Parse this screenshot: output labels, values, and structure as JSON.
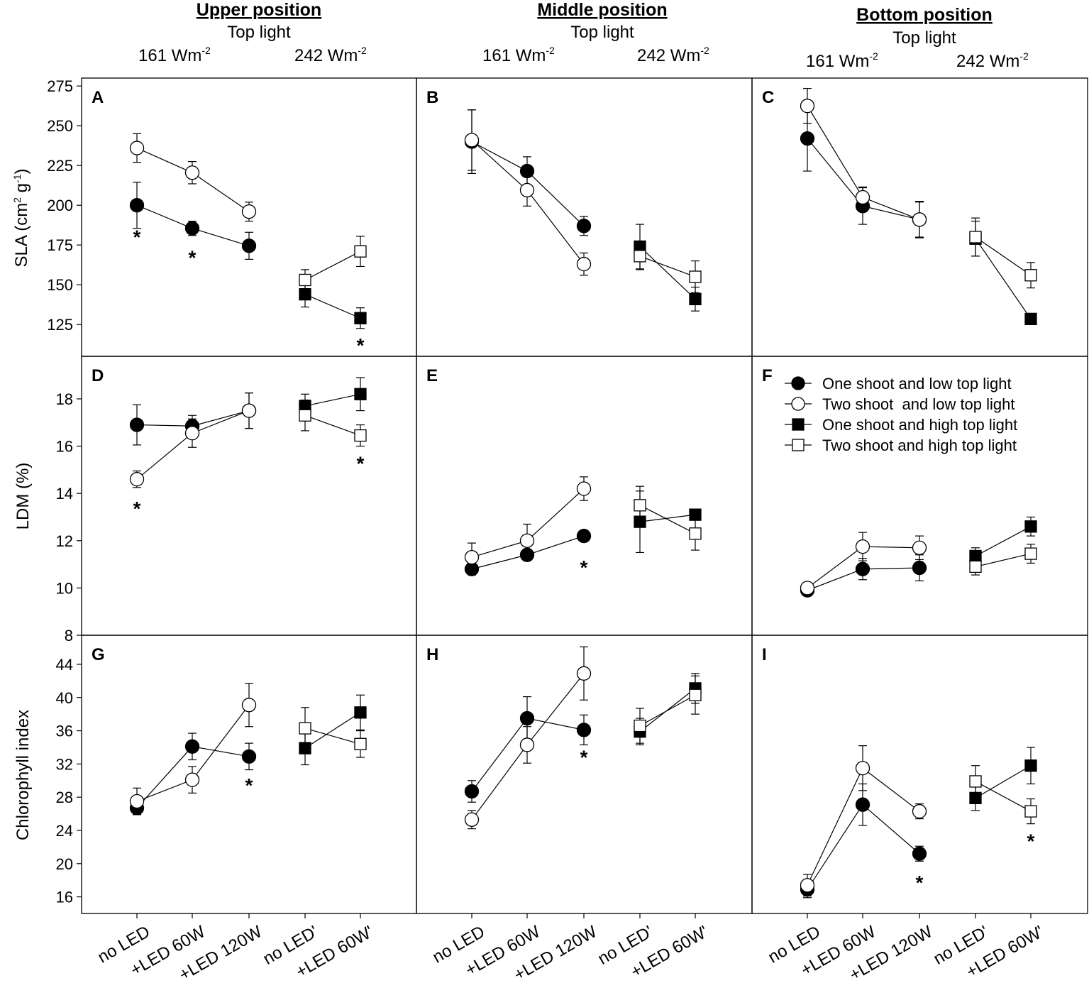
{
  "columns": [
    {
      "title": "Upper position",
      "top_light": "Top light",
      "irr_low": "161 Wm",
      "irr_high": "242 Wm",
      "irr_exp": "-2"
    },
    {
      "title": "Middle position",
      "top_light": "Top light",
      "irr_low": "161 Wm",
      "irr_high": "242 Wm",
      "irr_exp": "-2"
    },
    {
      "title": "Bottom position",
      "top_light": "Top light",
      "irr_low": "161 Wm",
      "irr_high": "242 Wm",
      "irr_exp": "-2"
    }
  ],
  "legend": {
    "one_low": "One shoot and low top light",
    "two_low": "Two shoot  and low top light",
    "one_high": "One shoot and high top light",
    "two_high": "Two shoot and high top light"
  },
  "chart_data": {
    "type": "line",
    "x_categories": [
      "no LED",
      "+LED 60W",
      "+LED 120W",
      "no LED'",
      "+LED 60W'"
    ],
    "series_legend": {
      "one_low": "One shoot and low top light",
      "two_low": "Two shoot  and low top light",
      "one_high": "One shoot and high top light",
      "two_high": "Two shoot and high top light"
    },
    "rows": [
      {
        "ylabel": "SLA (cm2 g-1)",
        "ylabel_parts": {
          "a": "SLA (cm",
          "b": "2",
          "c": " g",
          "d": "-1",
          "e": ")"
        },
        "ylim": [
          105,
          280
        ],
        "yticks": [
          125,
          150,
          175,
          200,
          225,
          250,
          275
        ],
        "panels": [
          {
            "label": "A",
            "series": {
              "one_low": {
                "values": [
                  200,
                  185.5,
                  174.5
                ],
                "errors": [
                  14.5,
                  4.5,
                  8.5
                ]
              },
              "two_low": {
                "values": [
                  236,
                  220.5,
                  196
                ],
                "errors": [
                  9,
                  7,
                  6
                ]
              },
              "one_high": {
                "values": [
                  144,
                  129
                ],
                "errors": [
                  8,
                  6.5
                ]
              },
              "two_high": {
                "values": [
                  153,
                  171
                ],
                "errors": [
                  6.5,
                  9.5
                ]
              }
            },
            "stars": [
              {
                "x": 0,
                "y": 182
              },
              {
                "x": 1,
                "y": 169
              },
              {
                "x": 4,
                "y": 114
              }
            ]
          },
          {
            "label": "B",
            "series": {
              "one_low": {
                "values": [
                  240,
                  221.5,
                  187
                ],
                "errors": [
                  20,
                  9,
                  6
                ]
              },
              "two_low": {
                "values": [
                  241,
                  209.5,
                  163
                ],
                "errors": [
                  19,
                  10,
                  7
                ]
              },
              "one_high": {
                "values": [
                  174,
                  141
                ],
                "errors": [
                  14,
                  7.5
                ]
              },
              "two_high": {
                "values": [
                  168,
                  155
                ],
                "errors": [
                  8.5,
                  10
                ]
              }
            },
            "stars": []
          },
          {
            "label": "C",
            "series": {
              "one_low": {
                "values": [
                  242,
                  199.5,
                  191
                ],
                "errors": [
                  20.5,
                  11.5,
                  11
                ]
              },
              "two_low": {
                "values": [
                  262.5,
                  205,
                  191
                ],
                "errors": [
                  11,
                  6.5,
                  11.5
                ]
              },
              "one_high": {
                "values": [
                  179,
                  128.5
                ],
                "errors": [
                  11,
                  2.5
                ]
              },
              "two_high": {
                "values": [
                  180,
                  156
                ],
                "errors": [
                  12,
                  8
                ]
              }
            },
            "stars": []
          }
        ]
      },
      {
        "ylabel": "LDM (%)",
        "ylim": [
          8,
          19.8
        ],
        "yticks": [
          8,
          10,
          12,
          14,
          16,
          18
        ],
        "panels": [
          {
            "label": "D",
            "series": {
              "one_low": {
                "values": [
                  16.9,
                  16.85,
                  17.5
                ],
                "errors": [
                  0.85,
                  0.45,
                  0.75
                ]
              },
              "two_low": {
                "values": [
                  14.6,
                  16.55,
                  17.5
                ],
                "errors": [
                  0.35,
                  0.6,
                  0.75
                ]
              },
              "one_high": {
                "values": [
                  17.7,
                  18.2
                ],
                "errors": [
                  0.5,
                  0.7
                ]
              },
              "two_high": {
                "values": [
                  17.3,
                  16.45
                ],
                "errors": [
                  0.65,
                  0.45
                ]
              }
            },
            "stars": [
              {
                "x": 0,
                "y": 13.5
              },
              {
                "x": 4,
                "y": 15.4
              }
            ]
          },
          {
            "label": "E",
            "series": {
              "one_low": {
                "values": [
                  10.8,
                  11.4,
                  12.2
                ],
                "errors": [
                  0.25,
                  0.2,
                  0.2
                ]
              },
              "two_low": {
                "values": [
                  11.3,
                  12.0,
                  14.2
                ],
                "errors": [
                  0.6,
                  0.7,
                  0.5
                ]
              },
              "one_high": {
                "values": [
                  12.8,
                  13.1
                ],
                "errors": [
                  1.3,
                  0.2
                ]
              },
              "two_high": {
                "values": [
                  13.5,
                  12.3
                ],
                "errors": [
                  0.8,
                  0.7
                ]
              }
            },
            "stars": [
              {
                "x": 2,
                "y": 11.0
              }
            ]
          },
          {
            "label": "F",
            "series": {
              "one_low": {
                "values": [
                  9.9,
                  10.8,
                  10.85
                ],
                "errors": [
                  0.2,
                  0.45,
                  0.55
                ]
              },
              "two_low": {
                "values": [
                  10.0,
                  11.75,
                  11.7
                ],
                "errors": [
                  0.2,
                  0.6,
                  0.5
                ]
              },
              "one_high": {
                "values": [
                  11.35,
                  12.6
                ],
                "errors": [
                  0.35,
                  0.4
                ]
              },
              "two_high": {
                "values": [
                  10.9,
                  11.45
                ],
                "errors": [
                  0.35,
                  0.4
                ]
              }
            },
            "stars": []
          }
        ]
      },
      {
        "ylabel": "Chlorophyll index",
        "ylim": [
          14,
          47.5
        ],
        "yticks": [
          16,
          20,
          24,
          28,
          32,
          36,
          40,
          44
        ],
        "panels": [
          {
            "label": "G",
            "series": {
              "one_low": {
                "values": [
                  26.7,
                  34.1,
                  32.9
                ],
                "errors": [
                  0.8,
                  1.6,
                  1.6
                ]
              },
              "two_low": {
                "values": [
                  27.5,
                  30.1,
                  39.1
                ],
                "errors": [
                  1.6,
                  1.6,
                  2.6
                ]
              },
              "one_high": {
                "values": [
                  33.9,
                  38.2
                ],
                "errors": [
                  2.0,
                  2.1
                ]
              },
              "two_high": {
                "values": [
                  36.3,
                  34.4
                ],
                "errors": [
                  2.5,
                  1.6
                ]
              }
            },
            "stars": [
              {
                "x": 2,
                "y": 29.8
              }
            ]
          },
          {
            "label": "H",
            "series": {
              "one_low": {
                "values": [
                  28.7,
                  37.5,
                  36.1
                ],
                "errors": [
                  1.3,
                  2.6,
                  1.8
                ]
              },
              "two_low": {
                "values": [
                  25.3,
                  34.3,
                  42.9
                ],
                "errors": [
                  1.1,
                  2.2,
                  3.2
                ]
              },
              "one_high": {
                "values": [
                  35.9,
                  41.1
                ],
                "errors": [
                  1.6,
                  1.8
                ]
              },
              "two_high": {
                "values": [
                  36.6,
                  40.3
                ],
                "errors": [
                  2.1,
                  2.3
                ]
              }
            },
            "stars": [
              {
                "x": 2,
                "y": 33.2
              }
            ]
          },
          {
            "label": "I",
            "series": {
              "one_low": {
                "values": [
                  16.9,
                  27.1,
                  21.2
                ],
                "errors": [
                  1.0,
                  2.5,
                  0.9
                ]
              },
              "two_low": {
                "values": [
                  17.4,
                  31.5,
                  26.3
                ],
                "errors": [
                  1.3,
                  2.7,
                  0.9
                ]
              },
              "one_high": {
                "values": [
                  27.9,
                  31.8
                ],
                "errors": [
                  1.5,
                  2.2
                ]
              },
              "two_high": {
                "values": [
                  29.9,
                  26.3
                ],
                "errors": [
                  1.9,
                  1.5
                ]
              }
            },
            "stars": [
              {
                "x": 2,
                "y": 18.1
              },
              {
                "x": 4,
                "y": 23.1
              }
            ]
          }
        ]
      }
    ],
    "significance_marker": "*"
  }
}
